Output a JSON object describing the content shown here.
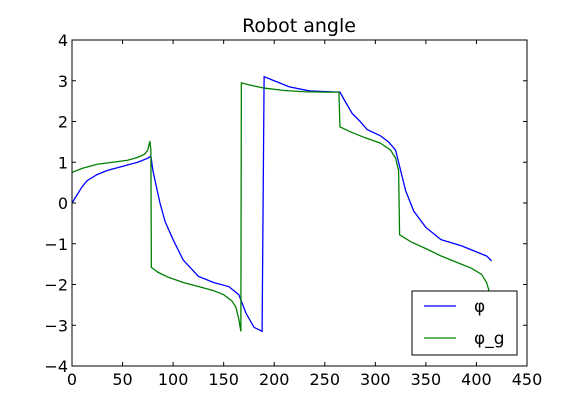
{
  "chart_data": {
    "type": "line",
    "title": "Robot angle",
    "xlabel": "",
    "ylabel": "",
    "xlim": [
      0,
      450
    ],
    "ylim": [
      -4,
      4
    ],
    "xticks": [
      0,
      50,
      100,
      150,
      200,
      250,
      300,
      350,
      400,
      450
    ],
    "yticks": [
      -4,
      -3,
      -2,
      -1,
      0,
      1,
      2,
      3,
      4
    ],
    "xtick_labels": [
      "0",
      "50",
      "100",
      "150",
      "200",
      "250",
      "300",
      "350",
      "400",
      "450"
    ],
    "ytick_labels": [
      "−4",
      "−3",
      "−2",
      "−1",
      "0",
      "1",
      "2",
      "3",
      "4"
    ],
    "grid": false,
    "legend_position": "lower-right",
    "series": [
      {
        "name": "φ",
        "color": "#0000ff",
        "points": [
          [
            0,
            0.0
          ],
          [
            5,
            0.2
          ],
          [
            10,
            0.4
          ],
          [
            15,
            0.55
          ],
          [
            25,
            0.7
          ],
          [
            35,
            0.8
          ],
          [
            50,
            0.9
          ],
          [
            65,
            1.0
          ],
          [
            75,
            1.1
          ],
          [
            78,
            1.15
          ],
          [
            80,
            0.8
          ],
          [
            83,
            0.45
          ],
          [
            87,
            0.0
          ],
          [
            92,
            -0.45
          ],
          [
            100,
            -0.9
          ],
          [
            110,
            -1.4
          ],
          [
            125,
            -1.8
          ],
          [
            140,
            -1.95
          ],
          [
            155,
            -2.05
          ],
          [
            165,
            -2.25
          ],
          [
            172,
            -2.7
          ],
          [
            180,
            -3.05
          ],
          [
            188,
            -3.15
          ],
          [
            190,
            3.1
          ],
          [
            200,
            3.0
          ],
          [
            215,
            2.85
          ],
          [
            235,
            2.75
          ],
          [
            255,
            2.73
          ],
          [
            265,
            2.72
          ],
          [
            270,
            2.5
          ],
          [
            277,
            2.2
          ],
          [
            285,
            2.0
          ],
          [
            292,
            1.8
          ],
          [
            305,
            1.65
          ],
          [
            313,
            1.5
          ],
          [
            320,
            1.3
          ],
          [
            323,
            1.0
          ],
          [
            326,
            0.7
          ],
          [
            330,
            0.3
          ],
          [
            338,
            -0.2
          ],
          [
            350,
            -0.6
          ],
          [
            365,
            -0.9
          ],
          [
            385,
            -1.05
          ],
          [
            400,
            -1.2
          ],
          [
            410,
            -1.3
          ],
          [
            415,
            -1.42
          ]
        ]
      },
      {
        "name": "φ_g",
        "color": "#008000",
        "points": [
          [
            0,
            0.75
          ],
          [
            10,
            0.85
          ],
          [
            25,
            0.95
          ],
          [
            40,
            1.0
          ],
          [
            55,
            1.05
          ],
          [
            65,
            1.12
          ],
          [
            72,
            1.2
          ],
          [
            75,
            1.3
          ],
          [
            77,
            1.52
          ],
          [
            78,
            1.3
          ],
          [
            78.5,
            -1.58
          ],
          [
            85,
            -1.7
          ],
          [
            95,
            -1.82
          ],
          [
            110,
            -1.95
          ],
          [
            125,
            -2.05
          ],
          [
            140,
            -2.15
          ],
          [
            150,
            -2.25
          ],
          [
            158,
            -2.4
          ],
          [
            162,
            -2.55
          ],
          [
            165,
            -2.85
          ],
          [
            167,
            -3.15
          ],
          [
            167.5,
            2.95
          ],
          [
            175,
            2.9
          ],
          [
            190,
            2.82
          ],
          [
            210,
            2.76
          ],
          [
            230,
            2.73
          ],
          [
            250,
            2.72
          ],
          [
            264,
            2.72
          ],
          [
            265,
            1.87
          ],
          [
            275,
            1.75
          ],
          [
            290,
            1.6
          ],
          [
            305,
            1.47
          ],
          [
            315,
            1.3
          ],
          [
            320,
            1.1
          ],
          [
            323,
            0.8
          ],
          [
            324,
            -0.78
          ],
          [
            335,
            -0.95
          ],
          [
            350,
            -1.12
          ],
          [
            365,
            -1.3
          ],
          [
            380,
            -1.45
          ],
          [
            395,
            -1.6
          ],
          [
            405,
            -1.75
          ],
          [
            410,
            -1.95
          ],
          [
            413,
            -2.2
          ],
          [
            415,
            -2.6
          ],
          [
            416,
            -3.0
          ]
        ]
      }
    ]
  }
}
